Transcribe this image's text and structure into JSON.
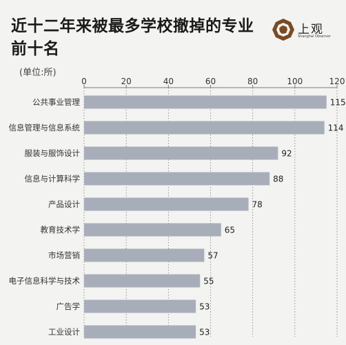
{
  "header": {
    "title": "近十二年来被最多学校撤掉的专业前十名",
    "unit": "(单位:所)"
  },
  "brand": {
    "name": "上观",
    "tagline": "Shanghai Observer"
  },
  "colors": {
    "bar": "#a8aeb9",
    "grid": "#7a7a7a",
    "brand": "#7a4a22"
  },
  "chart_data": {
    "type": "bar",
    "orientation": "horizontal",
    "title": "近十二年来被最多学校撤掉的专业前十名",
    "ylabel": "(单位:所)",
    "xlim": [
      0,
      120
    ],
    "ticks": [
      0,
      20,
      40,
      60,
      80,
      100,
      120
    ],
    "grid": true,
    "categories": [
      "公共事业管理",
      "信息管理与信息系统",
      "服装与服饰设计",
      "信息与计算科学",
      "产品设计",
      "教育技术学",
      "市场营销",
      "电子信息科学与技术",
      "广告学",
      "工业设计"
    ],
    "values": [
      115,
      114,
      92,
      88,
      78,
      65,
      57,
      55,
      53,
      53
    ]
  }
}
